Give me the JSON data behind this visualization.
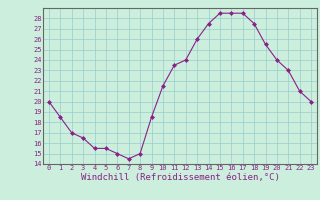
{
  "hours": [
    0,
    1,
    2,
    3,
    4,
    5,
    6,
    7,
    8,
    9,
    10,
    11,
    12,
    13,
    14,
    15,
    16,
    17,
    18,
    19,
    20,
    21,
    22,
    23
  ],
  "values": [
    20,
    18.5,
    17,
    16.5,
    15.5,
    15.5,
    15,
    14.5,
    15,
    18.5,
    21.5,
    23.5,
    24,
    26,
    27.5,
    28.5,
    28.5,
    28.5,
    27.5,
    25.5,
    24,
    23,
    21,
    20
  ],
  "line_color": "#882288",
  "marker": "D",
  "marker_size": 2.0,
  "bg_color": "#cceedd",
  "grid_color": "#99cccc",
  "xlabel": "Windchill (Refroidissement éolien,°C)",
  "ylim": [
    14,
    29
  ],
  "xlim_min": -0.5,
  "xlim_max": 23.5,
  "yticks": [
    14,
    15,
    16,
    17,
    18,
    19,
    20,
    21,
    22,
    23,
    24,
    25,
    26,
    27,
    28
  ],
  "xticks": [
    0,
    1,
    2,
    3,
    4,
    5,
    6,
    7,
    8,
    9,
    10,
    11,
    12,
    13,
    14,
    15,
    16,
    17,
    18,
    19,
    20,
    21,
    22,
    23
  ],
  "tick_fontsize": 5.0,
  "xlabel_fontsize": 6.5,
  "spine_color": "#666666",
  "linewidth": 0.8
}
